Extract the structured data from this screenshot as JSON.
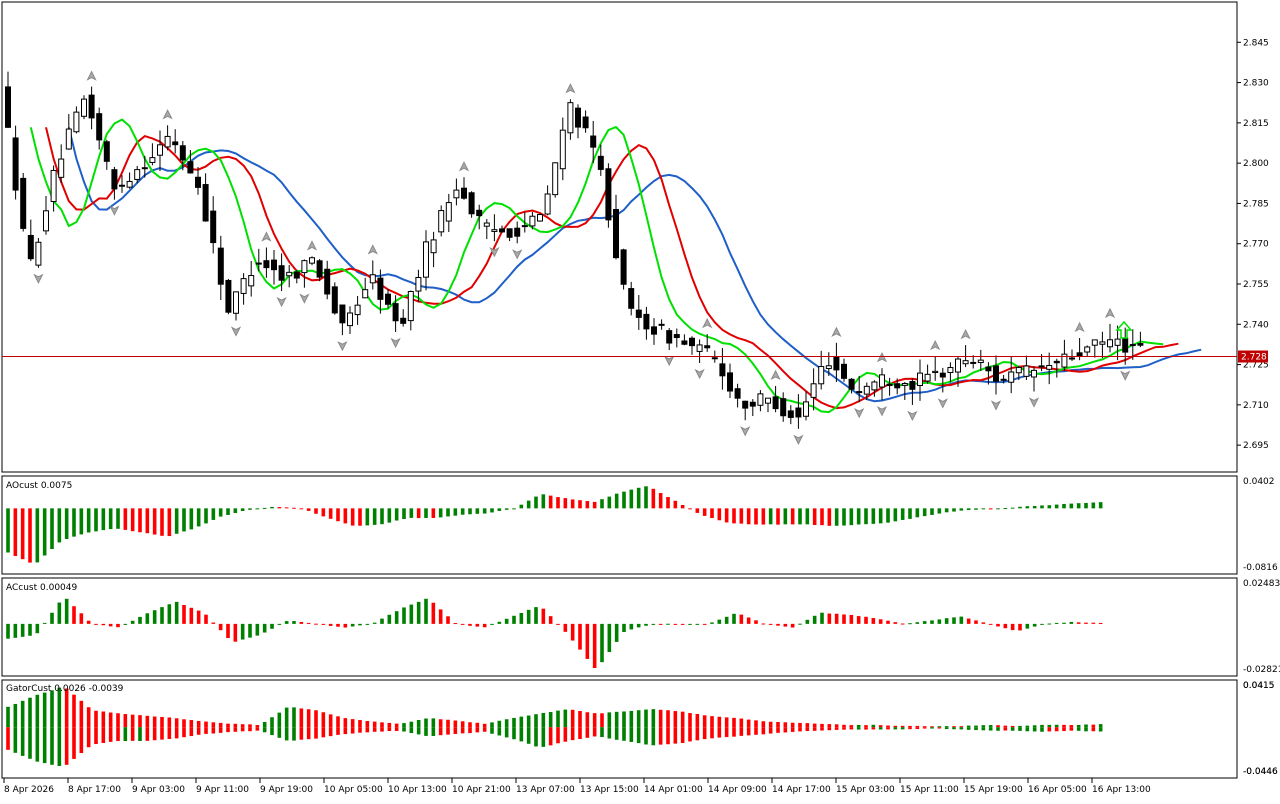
{
  "chart_data": [
    {
      "type": "candlestick",
      "panel": "main",
      "ylim": [
        2.685,
        2.86
      ],
      "yticks": [
        "2.845",
        "2.830",
        "2.815",
        "2.800",
        "2.785",
        "2.770",
        "2.755",
        "2.740",
        "2.725",
        "2.710",
        "2.695"
      ],
      "current_price": 2.728,
      "current_price_label": "2.728",
      "x_dates": [
        "8 Apr 2026",
        "8 Apr 17:00",
        "9 Apr 03:00",
        "9 Apr 11:00",
        "9 Apr 19:00",
        "10 Apr 05:00",
        "10 Apr 13:00",
        "10 Apr 21:00",
        "13 Apr 07:00",
        "13 Apr 15:00",
        "14 Apr 01:00",
        "14 Apr 09:00",
        "14 Apr 17:00",
        "15 Apr 03:00",
        "15 Apr 11:00",
        "15 Apr 19:00",
        "16 Apr 05:00",
        "16 Apr 13:00"
      ],
      "close_anchors": [
        2.83,
        2.76,
        2.8,
        2.825,
        2.79,
        2.8,
        2.81,
        2.79,
        2.745,
        2.765,
        2.757,
        2.765,
        2.738,
        2.758,
        2.738,
        2.77,
        2.792,
        2.775,
        2.775,
        2.78,
        2.822,
        2.8,
        2.745,
        2.738,
        2.733,
        2.728,
        2.71,
        2.712,
        2.705,
        2.728,
        2.715,
        2.72,
        2.718,
        2.722,
        2.728,
        2.72,
        2.722,
        2.725,
        2.73,
        2.734,
        2.73
      ],
      "ma_colors": {
        "fast": "#00e000",
        "mid": "#e00000",
        "slow": "#1e5fc8"
      },
      "up_fractal_count": 19,
      "down_fractal_count": 21,
      "candle_count": 150
    },
    {
      "type": "bar",
      "panel": "AO",
      "label": "AOcust 0.0075",
      "ylim": [
        -0.0816,
        0.0402
      ],
      "ytick_labels": [
        "0.0402",
        "-0.0816"
      ],
      "value_anchors": [
        -0.055,
        -0.07,
        -0.04,
        -0.03,
        -0.025,
        -0.03,
        -0.035,
        -0.025,
        -0.01,
        -0.002,
        0.002,
        0.0,
        -0.012,
        -0.022,
        -0.02,
        -0.012,
        -0.012,
        -0.008,
        -0.006,
        0.0,
        0.018,
        0.012,
        0.008,
        0.02,
        0.028,
        0.01,
        -0.008,
        -0.018,
        -0.02,
        -0.02,
        -0.02,
        -0.022,
        -0.02,
        -0.018,
        -0.012,
        -0.006,
        -0.002,
        -0.001,
        0.002,
        0.004,
        0.006,
        0.0075
      ],
      "up_color": "#008000",
      "down_color": "#ff0000"
    },
    {
      "type": "bar",
      "panel": "AC",
      "label": "ACcust 0.00049",
      "ylim": [
        -0.02821,
        0.02483
      ],
      "ytick_labels": [
        "0.02483",
        "-0.02821"
      ],
      "value_anchors": [
        -0.008,
        -0.006,
        0.015,
        0.0,
        -0.002,
        0.006,
        0.012,
        0.006,
        -0.01,
        -0.006,
        0.002,
        0.0,
        -0.002,
        0.0,
        0.008,
        0.014,
        0.0,
        -0.002,
        0.004,
        0.01,
        -0.006,
        -0.025,
        -0.004,
        0.0,
        0.0,
        0.0,
        0.006,
        0.0,
        -0.002,
        0.006,
        0.005,
        0.003,
        0.0,
        0.002,
        0.004,
        0.0,
        -0.004,
        0.0,
        0.001,
        0.0005
      ],
      "up_color": "#008000",
      "down_color": "#ff0000"
    },
    {
      "type": "bar",
      "panel": "Gator",
      "label": "GatorCust 0.0026 -0.0039",
      "ylim": [
        -0.0446,
        0.0415
      ],
      "ytick_labels": [
        "0.0415",
        "-0.0446"
      ],
      "upper_anchors": [
        0.018,
        0.028,
        0.036,
        0.015,
        0.012,
        0.01,
        0.008,
        0.005,
        0.003,
        0.002,
        0.018,
        0.015,
        0.008,
        0.005,
        0.003,
        0.008,
        0.006,
        0.003,
        0.008,
        0.012,
        0.016,
        0.012,
        0.014,
        0.016,
        0.014,
        0.01,
        0.008,
        0.005,
        0.004,
        0.003,
        0.002,
        0.002,
        0.001,
        0.001,
        0.001,
        0.002,
        0.001,
        0.002,
        0.002,
        0.0026
      ],
      "lower_anchors": [
        -0.02,
        -0.03,
        -0.035,
        -0.015,
        -0.012,
        -0.012,
        -0.01,
        -0.006,
        -0.004,
        -0.003,
        -0.012,
        -0.01,
        -0.006,
        -0.004,
        -0.003,
        -0.008,
        -0.006,
        -0.004,
        -0.01,
        -0.018,
        -0.012,
        -0.008,
        -0.012,
        -0.016,
        -0.014,
        -0.01,
        -0.008,
        -0.006,
        -0.004,
        -0.003,
        -0.002,
        -0.002,
        -0.002,
        -0.001,
        -0.002,
        -0.003,
        -0.003,
        -0.004,
        -0.003,
        -0.0039
      ],
      "up_color": "#008000",
      "down_color": "#ff0000"
    }
  ]
}
